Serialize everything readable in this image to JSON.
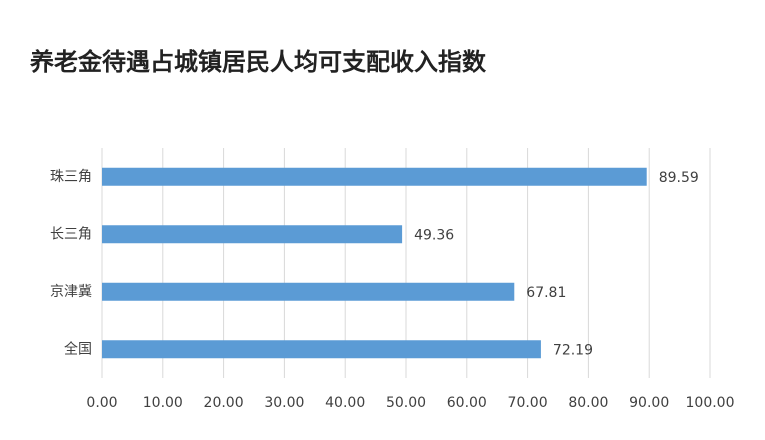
{
  "chart_data": {
    "type": "bar",
    "orientation": "horizontal",
    "title": "养老金待遇占城镇居民人均可支配收入指数",
    "categories": [
      "珠三角",
      "长三角",
      "京津冀",
      "全国"
    ],
    "values": [
      89.59,
      49.36,
      67.81,
      72.19
    ],
    "color": "#5b9bd5",
    "xlim": [
      0,
      100
    ],
    "xticks": [
      {
        "value": 0,
        "label": "0.00"
      },
      {
        "value": 10,
        "label": "10.00"
      },
      {
        "value": 20,
        "label": "20.00"
      },
      {
        "value": 30,
        "label": "30.00"
      },
      {
        "value": 40,
        "label": "40.00"
      },
      {
        "value": 50,
        "label": "50.00"
      },
      {
        "value": 60,
        "label": "60.00"
      },
      {
        "value": 70,
        "label": "70.00"
      },
      {
        "value": 80,
        "label": "80.00"
      },
      {
        "value": 90,
        "label": "90.00"
      },
      {
        "value": 100,
        "label": "100.00"
      }
    ],
    "grid": true
  }
}
